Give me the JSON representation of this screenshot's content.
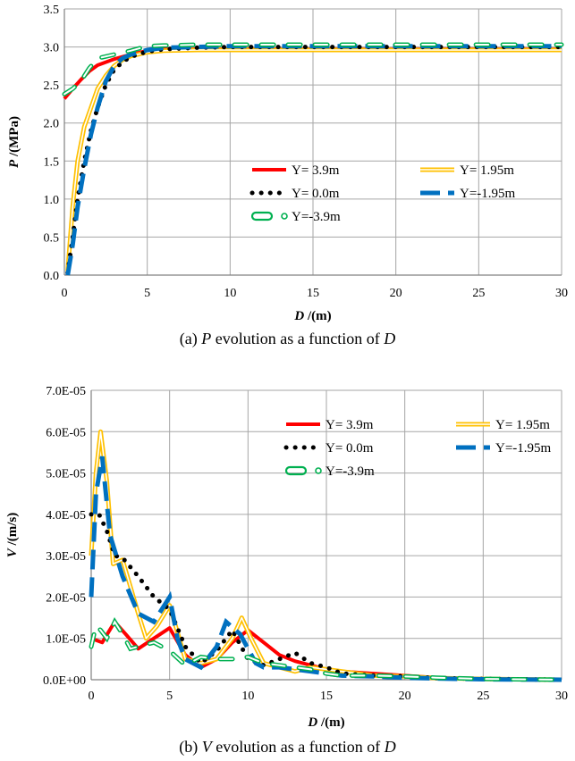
{
  "chart_data": [
    {
      "type": "line",
      "caption_prefix": "(a) ",
      "caption_var": "P",
      "caption_mid": " evolution as a function of ",
      "caption_var2": "D",
      "xlabel_var": "D",
      "xlabel_unit": " /(m)",
      "ylabel_var": "P",
      "ylabel_unit": " /(MPa)",
      "xlim": [
        0,
        30
      ],
      "ylim": [
        0,
        3.5
      ],
      "xticks": [
        "0",
        "5",
        "10",
        "15",
        "20",
        "25",
        "30"
      ],
      "yticks": [
        "0.0",
        "0.5",
        "1.0",
        "1.5",
        "2.0",
        "2.5",
        "3.0",
        "3.5"
      ],
      "grid": true,
      "series": [
        {
          "name": "Y= 3.9m",
          "color": "#ff0000",
          "style": "solid",
          "x": [
            0,
            0.5,
            1,
            1.5,
            2,
            3,
            4,
            5,
            6,
            8,
            10,
            15,
            20,
            25,
            30
          ],
          "y": [
            2.32,
            2.45,
            2.57,
            2.68,
            2.76,
            2.84,
            2.9,
            2.95,
            2.97,
            2.97,
            2.97,
            2.97,
            2.97,
            2.97,
            2.97
          ]
        },
        {
          "name": "Y= 1.95m",
          "color": "#ffc000",
          "style": "double",
          "x": [
            0.2,
            0.5,
            0.8,
            1.2,
            1.6,
            2,
            2.5,
            3,
            3.5,
            4,
            5,
            6,
            8,
            10,
            15,
            20,
            25,
            30
          ],
          "y": [
            0.05,
            0.9,
            1.5,
            1.95,
            2.2,
            2.45,
            2.62,
            2.75,
            2.83,
            2.88,
            2.93,
            2.95,
            2.96,
            2.96,
            2.96,
            2.96,
            2.96,
            2.96
          ]
        },
        {
          "name": "Y= 0.0m",
          "color": "#000000",
          "style": "dots",
          "x": [
            0.2,
            0.5,
            0.8,
            1.2,
            1.6,
            2,
            2.5,
            3,
            3.5,
            4,
            5,
            6,
            8,
            10,
            15,
            20,
            25,
            30
          ],
          "y": [
            0.03,
            0.5,
            1.0,
            1.5,
            1.9,
            2.2,
            2.5,
            2.7,
            2.8,
            2.87,
            2.94,
            2.97,
            2.99,
            3.0,
            3.0,
            3.0,
            3.0,
            3.0
          ]
        },
        {
          "name": "Y=-1.95m",
          "color": "#0070c0",
          "style": "longdash",
          "x": [
            0.2,
            0.5,
            0.8,
            1.2,
            1.6,
            2,
            2.5,
            3,
            3.5,
            4,
            5,
            6,
            8,
            10,
            15,
            20,
            25,
            30
          ],
          "y": [
            0.0,
            0.4,
            0.9,
            1.4,
            1.85,
            2.2,
            2.55,
            2.75,
            2.85,
            2.9,
            2.96,
            2.99,
            3.0,
            3.01,
            3.01,
            3.01,
            3.01,
            3.01
          ]
        },
        {
          "name": "Y=-3.9m",
          "color": "#00b050",
          "style": "ring",
          "x": [
            0,
            0.5,
            1,
            1.5,
            2,
            3,
            4,
            5,
            6,
            8,
            10,
            15,
            20,
            25,
            30
          ],
          "y": [
            2.38,
            2.45,
            2.55,
            2.72,
            2.85,
            2.9,
            2.95,
            3.01,
            3.02,
            3.03,
            3.03,
            3.03,
            3.03,
            3.03,
            3.03
          ]
        }
      ]
    },
    {
      "type": "line",
      "caption_prefix": "(b) ",
      "caption_var": "V",
      "caption_mid": " evolution as a function of ",
      "caption_var2": "D",
      "xlabel_var": "D",
      "xlabel_unit": " /(m)",
      "ylabel_var": "V",
      "ylabel_unit": " /(m/s)",
      "xlim": [
        0,
        30
      ],
      "ylim": [
        0,
        7e-05
      ],
      "xticks": [
        "0",
        "5",
        "10",
        "15",
        "20",
        "25",
        "30"
      ],
      "yticks": [
        "0.0E+00",
        "1.0E-05",
        "2.0E-05",
        "3.0E-05",
        "4.0E-05",
        "5.0E-05",
        "6.0E-05",
        "7.0E-05"
      ],
      "grid": true,
      "series": [
        {
          "name": "Y= 3.9m",
          "color": "#ff0000",
          "style": "solid",
          "x": [
            0,
            0.7,
            1.5,
            2.2,
            3,
            4,
            5,
            6,
            7,
            8,
            9,
            10,
            11,
            12,
            13,
            14,
            15,
            16,
            18,
            20,
            22,
            25,
            30
          ],
          "y": [
            1e-05,
            9e-06,
            1.4e-05,
            1.1e-05,
            7.5e-06,
            1e-05,
            1.25e-05,
            6e-06,
            3e-06,
            5e-06,
            9e-06,
            1.2e-05,
            9e-06,
            6e-06,
            4.5e-06,
            3.5e-06,
            2.5e-06,
            2e-06,
            1.5e-06,
            1e-06,
            5e-07,
            2e-07,
            0.0
          ]
        },
        {
          "name": "Y= 1.95m",
          "color": "#ffc000",
          "style": "double",
          "x": [
            0,
            0.3,
            0.6,
            1,
            1.4,
            2,
            3,
            3.5,
            4.2,
            5,
            6,
            7,
            8,
            9,
            9.6,
            10.2,
            11,
            12,
            13,
            14,
            15,
            16,
            18,
            20,
            22,
            25,
            30
          ],
          "y": [
            3e-05,
            5e-05,
            6e-05,
            4.8e-05,
            2.8e-05,
            2.9e-05,
            1.6e-05,
            1e-05,
            1.3e-05,
            1.8e-05,
            5e-06,
            4e-06,
            5e-06,
            1e-05,
            1.5e-05,
            1e-05,
            4e-06,
            3e-06,
            2e-06,
            3e-06,
            2.5e-06,
            2e-06,
            1e-06,
            8e-07,
            4e-07,
            2e-07,
            0.0
          ]
        },
        {
          "name": "Y= 0.0m",
          "color": "#000000",
          "style": "dots",
          "x": [
            0,
            0.5,
            1,
            1.5,
            2,
            3,
            4,
            5,
            6,
            7,
            8,
            9,
            10,
            11,
            12,
            13,
            14,
            15,
            16,
            18,
            20,
            22,
            25,
            30
          ],
          "y": [
            4e-05,
            4e-05,
            3.6e-05,
            3e-05,
            2.95e-05,
            2.5e-05,
            2e-05,
            1.7e-05,
            8e-06,
            4e-06,
            7e-06,
            1.2e-05,
            5e-06,
            3.5e-06,
            5e-06,
            6.5e-06,
            4e-06,
            3e-06,
            1.5e-06,
            1e-06,
            8e-07,
            4e-07,
            2e-07,
            0.0
          ]
        },
        {
          "name": "Y=-1.95m",
          "color": "#0070c0",
          "style": "longdash",
          "x": [
            0,
            0.3,
            0.7,
            1.2,
            2,
            3,
            4,
            5,
            5.5,
            6,
            7,
            8,
            8.6,
            9.5,
            10.5,
            11,
            12,
            13,
            14,
            15,
            16,
            18,
            20,
            22,
            25,
            30
          ],
          "y": [
            2e-05,
            4.5e-05,
            5.4e-05,
            3.5e-05,
            2.5e-05,
            1.6e-05,
            1.4e-05,
            2e-05,
            1e-05,
            5e-06,
            3e-06,
            8e-06,
            1.4e-05,
            1.1e-05,
            4e-06,
            3e-06,
            3e-06,
            2.5e-06,
            2e-06,
            1.5e-06,
            1e-06,
            8e-07,
            5e-07,
            3e-07,
            1e-07,
            0.0
          ]
        },
        {
          "name": "Y=-3.9m",
          "color": "#00b050",
          "style": "ring",
          "x": [
            0,
            0.3,
            0.6,
            1,
            1.5,
            2,
            2.5,
            3,
            4,
            5,
            6,
            7,
            8,
            9,
            10,
            11,
            12,
            13,
            14,
            15,
            16,
            18,
            20,
            22,
            25,
            30
          ],
          "y": [
            8e-06,
            1.3e-05,
            1.2e-05,
            1e-05,
            1.4e-05,
            1.1e-05,
            7.5e-06,
            8e-06,
            9e-06,
            7e-06,
            3.5e-06,
            5.5e-06,
            5e-06,
            5e-06,
            5.5e-06,
            4e-06,
            3.5e-06,
            3e-06,
            2.5e-06,
            1.5e-06,
            1e-06,
            1e-06,
            8e-07,
            5e-07,
            2e-07,
            0.0
          ]
        }
      ]
    }
  ]
}
